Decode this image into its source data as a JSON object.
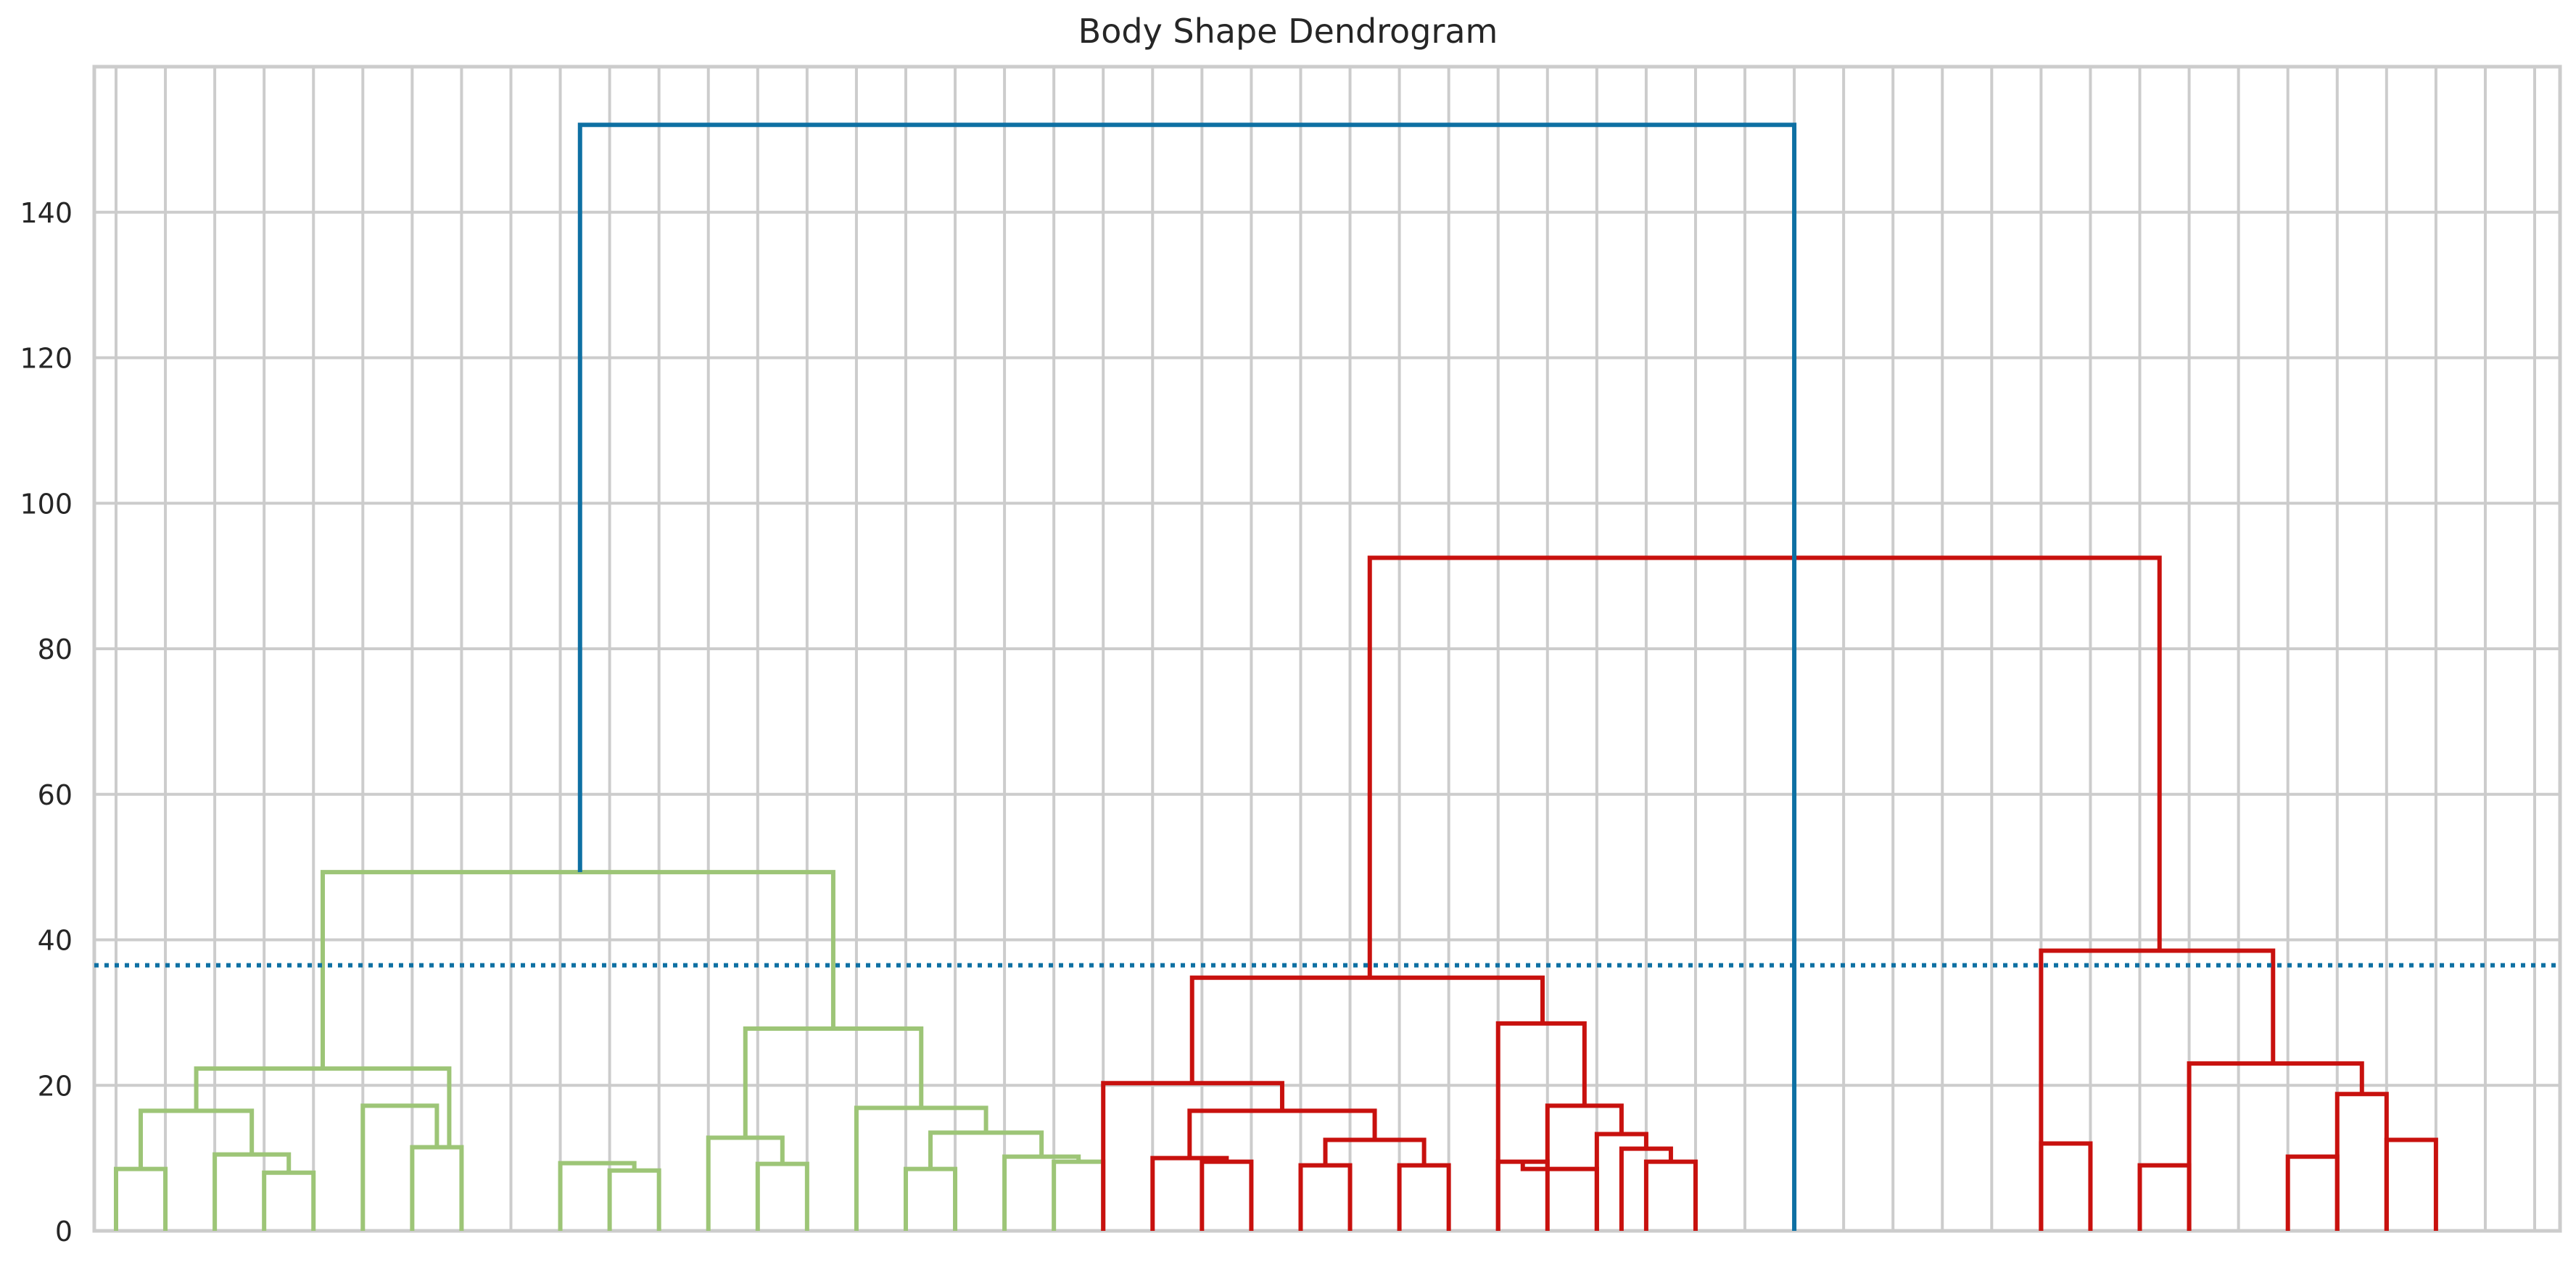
{
  "chart_data": {
    "type": "dendrogram",
    "title": "Body Shape Dendrogram",
    "ylim": [
      0,
      160
    ],
    "yticks": [
      0,
      20,
      40,
      60,
      80,
      100,
      120,
      140
    ],
    "grid": true,
    "num_leaves": 50,
    "cut_threshold": 36.5,
    "colors": {
      "cluster_green": "#9dc577",
      "cluster_red": "#c8110e",
      "above_threshold": "#0e70a3",
      "threshold_line": "#0e70a3",
      "grid": "#cccccc",
      "background": "#ffffff"
    },
    "links": [
      {
        "left": 0,
        "right": 1,
        "height": 8.5,
        "color": "green"
      },
      {
        "left": 3,
        "right": 4,
        "height": 8.0,
        "color": "green"
      },
      {
        "left": 2,
        "right": "c3.5",
        "height": 10.5,
        "color": "green"
      },
      {
        "left": "c0.5",
        "right": "c2.75",
        "height": 16.5,
        "color": "green"
      },
      {
        "left": 10,
        "right": 11,
        "height": 8.3,
        "color": "green"
      },
      {
        "left": 9,
        "right": "c10.5",
        "height": 9.3,
        "color": "green"
      },
      {
        "left": 6,
        "right": 7,
        "height": 11.5,
        "color": "green"
      },
      {
        "left": 5,
        "right": "c6.5",
        "height": 17.2,
        "color": "green"
      },
      {
        "left": "c1.625",
        "right": "c6.75",
        "height": 22.3,
        "color": "green"
      },
      {
        "left": 13,
        "right": 14,
        "height": 9.2,
        "color": "green"
      },
      {
        "left": 12,
        "right": "c13.5",
        "height": 12.8,
        "color": "green"
      },
      {
        "left": 19,
        "right": 20,
        "height": 9.5,
        "color": "green"
      },
      {
        "left": 18,
        "right": "c19.5",
        "height": 10.2,
        "color": "green"
      },
      {
        "left": 16,
        "right": 17,
        "height": 8.5,
        "color": "green"
      },
      {
        "left": "c16.5",
        "right": "c18.75",
        "height": 13.5,
        "color": "green"
      },
      {
        "left": 15,
        "right": "c17.625",
        "height": 16.9,
        "color": "green"
      },
      {
        "left": "c12.75",
        "right": "c16.3125",
        "height": 27.8,
        "color": "green"
      },
      {
        "left": "c4.1875",
        "right": "c14.53",
        "height": 49.3,
        "color": "green"
      },
      {
        "left": 22,
        "right": 23,
        "height": 9.5,
        "color": "red"
      },
      {
        "left": 21,
        "right": "c22.5",
        "height": 10.0,
        "color": "red"
      },
      {
        "left": 24,
        "right": 25,
        "height": 9.0,
        "color": "red"
      },
      {
        "left": 26,
        "right": 27,
        "height": 9.0,
        "color": "red"
      },
      {
        "left": "c24.5",
        "right": "c26.5",
        "height": 12.5,
        "color": "red"
      },
      {
        "left": "c21.75",
        "right": "c25.5",
        "height": 16.5,
        "color": "red"
      },
      {
        "left": 20,
        "right": "c23.625",
        "height": 20.3,
        "color": "red"
      },
      {
        "left": 28,
        "right": 29,
        "height": 9.5,
        "color": "red"
      },
      {
        "left": 28.5,
        "right": 30,
        "height": 8.5,
        "color": "red"
      },
      {
        "left": 31,
        "right": 32,
        "height": 9.5,
        "color": "red"
      },
      {
        "left": 30.5,
        "right": 31.5,
        "height": 11.3,
        "color": "red"
      },
      {
        "left": 30,
        "right": 31,
        "height": 13.3,
        "color": "red"
      },
      {
        "left": 29,
        "right": 30.5,
        "height": 17.2,
        "color": "red"
      },
      {
        "left": 28,
        "right": 29.75,
        "height": 28.5,
        "color": "red"
      },
      {
        "left": 21.8,
        "right": 28.9,
        "height": 34.8,
        "color": "red"
      },
      {
        "left": 39,
        "right": 40,
        "height": 12.0,
        "color": "red"
      },
      {
        "left": 41,
        "right": 42,
        "height": 9.0,
        "color": "red"
      },
      {
        "left": 44,
        "right": 45,
        "height": 10.2,
        "color": "red"
      },
      {
        "left": 46,
        "right": 47,
        "height": 12.5,
        "color": "red"
      },
      {
        "left": 45,
        "right": 46,
        "height": 18.8,
        "color": "red"
      },
      {
        "left": 42,
        "right": 45.5,
        "height": 23.0,
        "color": "red"
      },
      {
        "left": 39,
        "right": 43.7,
        "height": 38.5,
        "color": "red"
      },
      {
        "left": 25.4,
        "right": 41.4,
        "height": 92.5,
        "color": "red"
      },
      {
        "left": 9.4,
        "right": 34.0,
        "height": 152.0,
        "color": "blue"
      }
    ]
  }
}
